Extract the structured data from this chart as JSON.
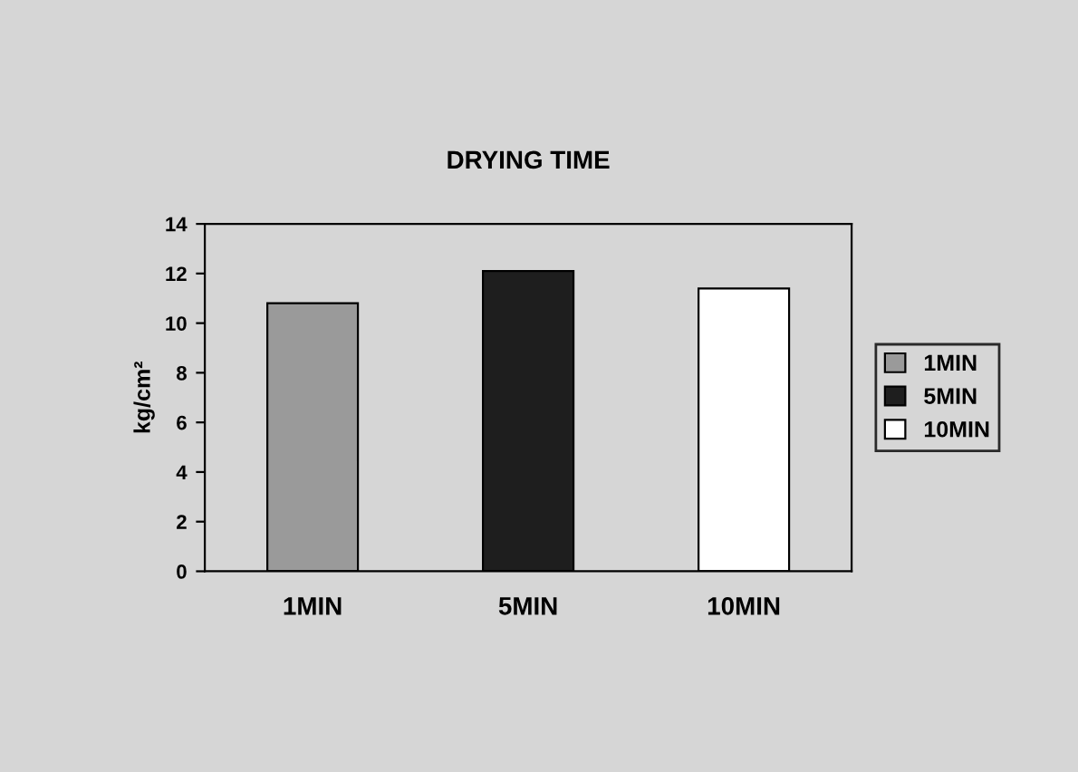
{
  "chart_data": {
    "type": "bar",
    "title": "DRYING TIME",
    "ylabel": "kg/cm²",
    "categories": [
      "1MIN",
      "5MIN",
      "10MIN"
    ],
    "series": [
      {
        "name": "1MIN",
        "color": "#9a9a9a",
        "values": [
          10.8,
          null,
          null
        ]
      },
      {
        "name": "5MIN",
        "color": "#1e1e1e",
        "values": [
          null,
          12.1,
          null
        ]
      },
      {
        "name": "10MIN",
        "color": "#ffffff",
        "values": [
          null,
          null,
          11.4
        ]
      }
    ],
    "ylim": [
      0,
      14
    ],
    "yticks": [
      0,
      2,
      4,
      6,
      8,
      10,
      12,
      14
    ],
    "legend": "right"
  }
}
